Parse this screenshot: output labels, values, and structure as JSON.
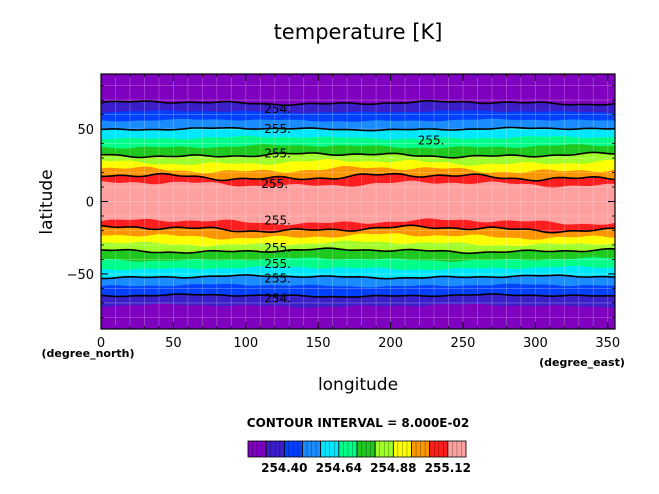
{
  "chart_data": {
    "type": "contour",
    "title": "temperature [K]",
    "xlabel": "longitude",
    "ylabel": "latitude",
    "x_unit_label": "(degree_east)",
    "y_unit_label": "(degree_north)",
    "xlim": [
      0,
      355
    ],
    "ylim": [
      -88,
      88
    ],
    "x_ticks": [
      0,
      50,
      100,
      150,
      200,
      250,
      300,
      350
    ],
    "y_ticks": [
      -50,
      0,
      50
    ],
    "grid": true,
    "contour_interval_label": "CONTOUR INTERVAL = 8.000E-02",
    "levels": [
      254.32,
      254.4,
      254.48,
      254.56,
      254.64,
      254.72,
      254.8,
      254.88,
      254.96,
      255.04,
      255.12
    ],
    "colorbar_tick_labels": [
      "254.40",
      "254.64",
      "254.88",
      "255.12"
    ],
    "colorbar_tick_values": [
      254.4,
      254.64,
      254.88,
      255.12
    ],
    "colors": [
      "#8000c0",
      "#3c1ec8",
      "#0040ff",
      "#1a8cff",
      "#00e6ff",
      "#00ff88",
      "#1ec81e",
      "#a0ff28",
      "#ffff00",
      "#ff9600",
      "#ff1e1e",
      "#ffa0a0"
    ],
    "boundaries_north": [
      {
        "lat": 12,
        "amp": 1.6
      },
      {
        "lat": 17,
        "amp": 1.8
      },
      {
        "lat": 22,
        "amp": 1.8
      },
      {
        "lat": 27,
        "amp": 1.5
      },
      {
        "lat": 32,
        "amp": 1.2
      },
      {
        "lat": 38,
        "amp": 1.0
      },
      {
        "lat": 44,
        "amp": 0.8
      },
      {
        "lat": 50,
        "amp": 0.7
      },
      {
        "lat": 56,
        "amp": 0.7
      },
      {
        "lat": 62,
        "amp": 0.6
      },
      {
        "lat": 68,
        "amp": 1.0
      }
    ],
    "boundaries_south": [
      {
        "lat": -14,
        "amp": 1.5
      },
      {
        "lat": -19,
        "amp": 1.6
      },
      {
        "lat": -24,
        "amp": 1.5
      },
      {
        "lat": -29,
        "amp": 1.3
      },
      {
        "lat": -34,
        "amp": 1.1
      },
      {
        "lat": -40,
        "amp": 1.0
      },
      {
        "lat": -46,
        "amp": 0.9
      },
      {
        "lat": -52,
        "amp": 0.8
      },
      {
        "lat": -58,
        "amp": 0.8
      },
      {
        "lat": -65,
        "amp": 0.7
      },
      {
        "lat": -72,
        "amp": 0.9
      }
    ],
    "black_contours": [
      {
        "side": "north",
        "index": 1
      },
      {
        "side": "north",
        "index": 4
      },
      {
        "side": "north",
        "index": 7
      },
      {
        "side": "north",
        "index": 10
      },
      {
        "side": "south",
        "index": 1
      },
      {
        "side": "south",
        "index": 4
      },
      {
        "side": "south",
        "index": 7
      },
      {
        "side": "south",
        "index": 9
      }
    ],
    "contour_labels": [
      {
        "text": "254.",
        "lon": 122,
        "lat": 64
      },
      {
        "text": "255.",
        "lon": 122,
        "lat": 50
      },
      {
        "text": "255.",
        "lon": 228,
        "lat": 42
      },
      {
        "text": "255.",
        "lon": 122,
        "lat": 33
      },
      {
        "text": "255.",
        "lon": 120,
        "lat": 12
      },
      {
        "text": "255.",
        "lon": 122,
        "lat": -13
      },
      {
        "text": "255.",
        "lon": 122,
        "lat": -32
      },
      {
        "text": "255.",
        "lon": 122,
        "lat": -43
      },
      {
        "text": "255.",
        "lon": 122,
        "lat": -53
      },
      {
        "text": "254.",
        "lon": 122,
        "lat": -67
      }
    ]
  }
}
